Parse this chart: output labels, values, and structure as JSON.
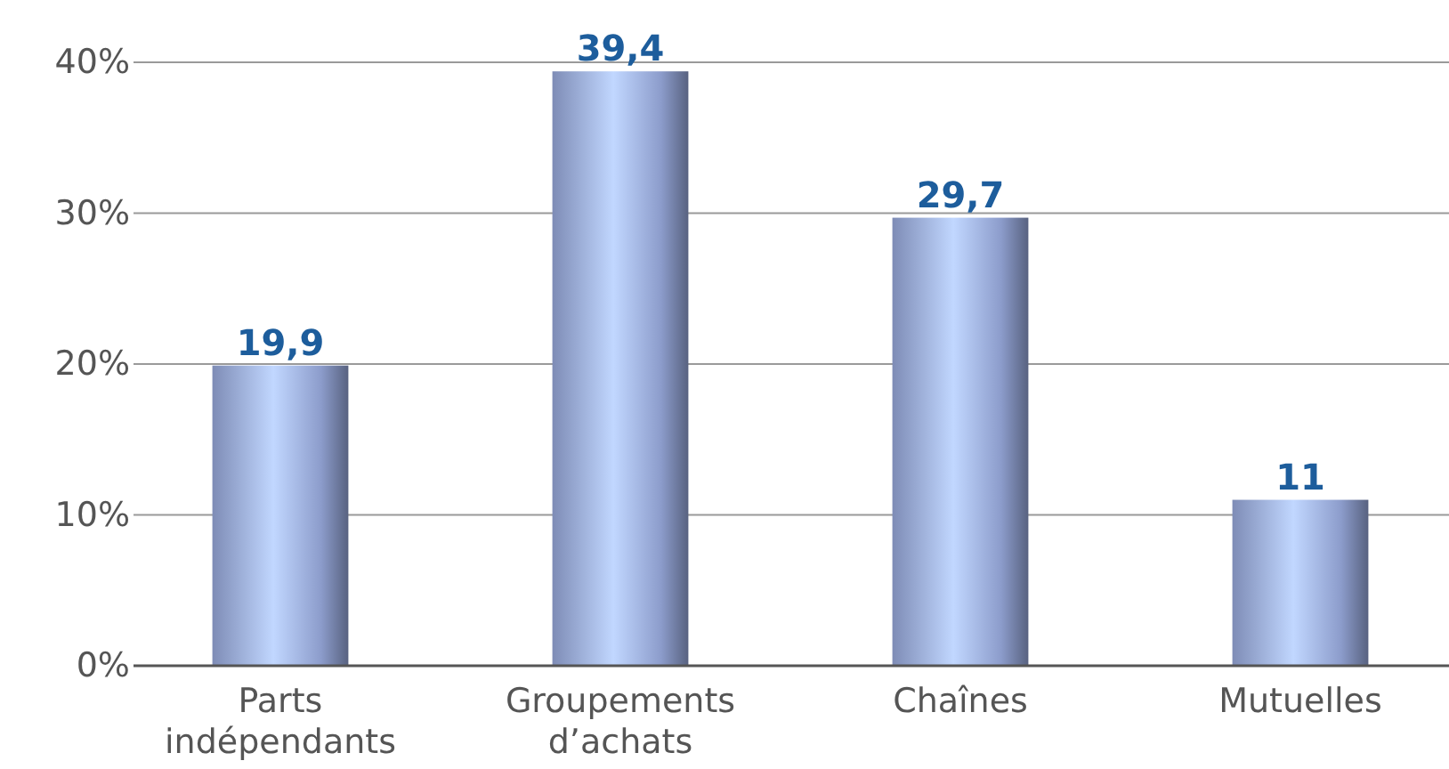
{
  "chart_data": {
    "type": "bar",
    "categories": [
      "Parts indépendants",
      "Groupements d’achats",
      "Chaînes",
      "Mutuelles"
    ],
    "values": [
      19.9,
      39.4,
      29.7,
      11
    ],
    "value_labels": [
      "19,9",
      "39,4",
      "29,7",
      "11"
    ],
    "color": "#8c9ccb",
    "ylim": [
      0,
      40
    ],
    "yticks": [
      {
        "value": 0,
        "label": "0%"
      },
      {
        "value": 10,
        "label": "10%"
      },
      {
        "value": 20,
        "label": "20%"
      },
      {
        "value": 30,
        "label": "30%"
      },
      {
        "value": 40,
        "label": "40%"
      }
    ],
    "grid": "y"
  }
}
